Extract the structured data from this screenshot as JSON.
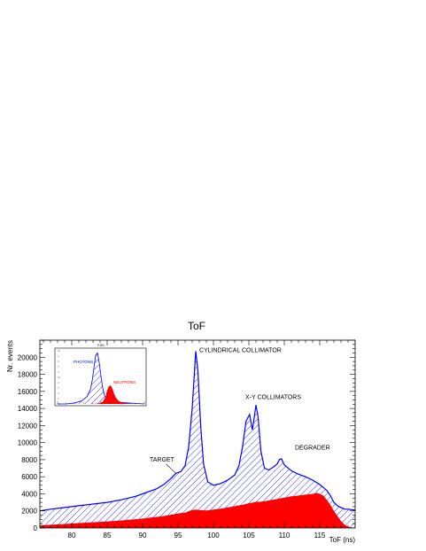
{
  "chart_data": {
    "type": "area",
    "title": "ToF",
    "xlabel": "ToF (ns)",
    "ylabel": "Nr. events",
    "xlim": [
      75.5,
      120.0
    ],
    "ylim": [
      0,
      22000
    ],
    "x_ticks": [
      80,
      85,
      90,
      95,
      100,
      105,
      110,
      115
    ],
    "y_ticks": [
      0,
      2000,
      4000,
      6000,
      8000,
      10000,
      12000,
      14000,
      16000,
      18000,
      20000
    ],
    "grid": false,
    "colors": {
      "total": "#0000ff",
      "neutrons": "#ff0000",
      "axis": "#000000"
    },
    "series": [
      {
        "style": "hatched",
        "x": [
          75.5,
          77,
          79,
          81,
          83,
          85,
          87,
          89,
          90,
          91,
          92,
          93,
          94,
          94.7,
          95.4,
          96,
          96.5,
          97,
          97.3,
          97.5,
          97.8,
          98.2,
          98.6,
          99.2,
          100,
          101,
          102,
          103,
          103.6,
          104.1,
          104.6,
          105.1,
          105.5,
          105.8,
          106,
          106.3,
          106.7,
          107.2,
          107.8,
          108.4,
          109,
          109.3,
          109.6,
          110,
          111,
          112,
          113,
          114,
          115,
          116,
          116.5,
          117,
          117.5,
          118,
          118.3,
          118.5,
          119,
          120
        ],
        "values": [
          2000,
          2200,
          2400,
          2600,
          2800,
          3000,
          3300,
          3700,
          4000,
          4300,
          4600,
          5100,
          5800,
          6400,
          6600,
          7300,
          9500,
          14000,
          18000,
          20700,
          18500,
          12000,
          7500,
          5400,
          5000,
          5200,
          5600,
          6200,
          7300,
          9500,
          12500,
          13300,
          11500,
          13200,
          14400,
          13000,
          9000,
          7000,
          6800,
          7100,
          7500,
          8000,
          8100,
          7400,
          6700,
          6300,
          6000,
          5600,
          5100,
          4400,
          3800,
          3000,
          2600,
          2400,
          2300,
          2200,
          2200,
          2100
        ]
      },
      {
        "style": "filled",
        "x": [
          75.5,
          78,
          80,
          82,
          84,
          86,
          88,
          90,
          91,
          92,
          93,
          94,
          95,
          96,
          96.6,
          97,
          97.5,
          98,
          99,
          100,
          101,
          102,
          103,
          104,
          105,
          106,
          107,
          108,
          109,
          110,
          111,
          112,
          113,
          114,
          114.6,
          115,
          115.5,
          116,
          116.5,
          117,
          117.5,
          118,
          118.5,
          119,
          119.5,
          120
        ],
        "values": [
          300,
          420,
          520,
          620,
          720,
          820,
          940,
          1100,
          1200,
          1300,
          1400,
          1550,
          1700,
          1800,
          2000,
          2100,
          2150,
          2100,
          2050,
          2150,
          2250,
          2400,
          2550,
          2700,
          2900,
          3050,
          3100,
          3250,
          3400,
          3550,
          3700,
          3800,
          3900,
          4000,
          4100,
          4000,
          3800,
          3300,
          2700,
          2000,
          1400,
          800,
          400,
          150,
          60,
          30
        ]
      }
    ],
    "annotations": [
      {
        "text": "CYLINDRICAL COLLIMATOR",
        "x": 98.0,
        "y": 20600
      },
      {
        "text": "X-Y COLLIMATORS",
        "x": 104.5,
        "y": 15100
      },
      {
        "text": "DEGRADER",
        "x": 111.5,
        "y": 9200
      },
      {
        "text": "TARGET",
        "x": 91.0,
        "y": 7800
      }
    ],
    "inset": {
      "title": "P.SD",
      "series": [
        {
          "name": "PHOTONS",
          "color": "#0000ff",
          "x": [
            0,
            0.1,
            0.2,
            0.28,
            0.34,
            0.38,
            0.4,
            0.42,
            0.44,
            0.46,
            0.48,
            0.5,
            0.52,
            0.54,
            0.56,
            0.58,
            0.6,
            0.62,
            0.66,
            0.72,
            0.8,
            0.9,
            1.0
          ],
          "values": [
            0,
            0,
            0.02,
            0.06,
            0.14,
            0.28,
            0.45,
            0.7,
            0.92,
            0.96,
            0.78,
            0.52,
            0.3,
            0.16,
            0.1,
            0.07,
            0.06,
            0.05,
            0.04,
            0.03,
            0.02,
            0.01,
            0.0
          ]
        },
        {
          "name": "NEUTRONS",
          "color": "#ff0000",
          "x": [
            0,
            0.4,
            0.48,
            0.52,
            0.55,
            0.57,
            0.59,
            0.61,
            0.63,
            0.65,
            0.67,
            0.7,
            0.74,
            0.8,
            0.9,
            1.0
          ],
          "values": [
            0,
            0,
            0.01,
            0.04,
            0.12,
            0.25,
            0.33,
            0.35,
            0.3,
            0.2,
            0.12,
            0.06,
            0.03,
            0.01,
            0,
            0
          ]
        }
      ]
    }
  }
}
